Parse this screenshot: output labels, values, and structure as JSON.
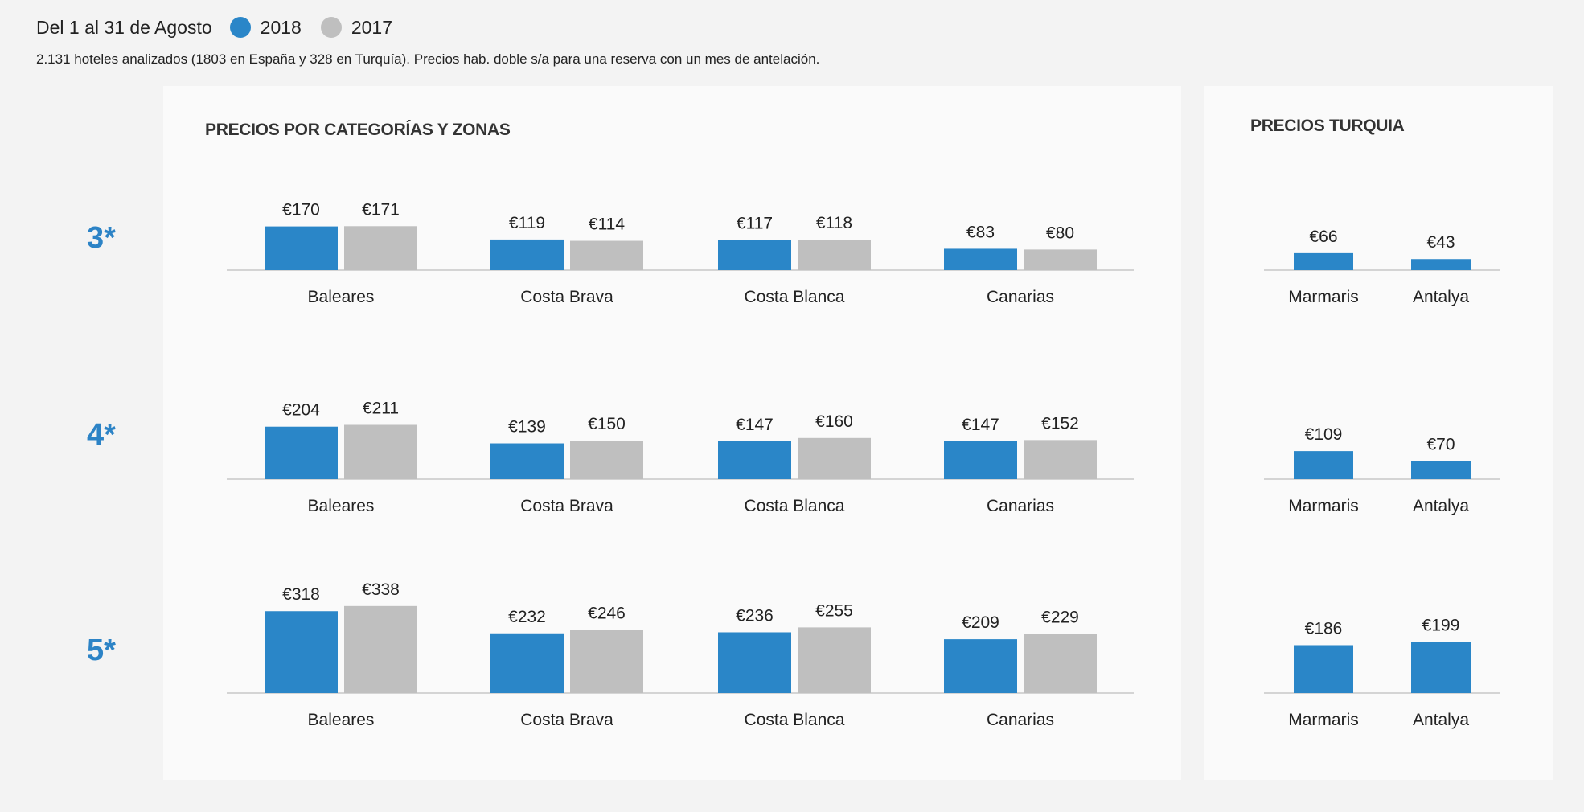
{
  "header": {
    "period": "Del 1 al 31 de Agosto",
    "legend": [
      {
        "label": "2018",
        "color": "#2a86c8"
      },
      {
        "label": "2017",
        "color": "#bfbfbf"
      }
    ],
    "subtitle": "2.131 hoteles analizados (1803 en España y 328 en Turquía). Precios hab. doble s/a para una reserva con un mes de antelación."
  },
  "panels": {
    "spain_title": "PRECIOS POR CATEGORÍAS Y ZONAS",
    "turkey_title": "PRECIOS TURQUIA"
  },
  "categories": [
    "3*",
    "4*",
    "5*"
  ],
  "chart_data": [
    {
      "type": "bar",
      "title": "PRECIOS POR CATEGORÍAS Y ZONAS",
      "categories": [
        "Baleares",
        "Costa Brava",
        "Costa Blanca",
        "Canarias"
      ],
      "groups": [
        {
          "category": "3*",
          "series": [
            {
              "name": "2018",
              "values": [
                170,
                119,
                117,
                83
              ]
            },
            {
              "name": "2017",
              "values": [
                171,
                114,
                118,
                80
              ]
            }
          ]
        },
        {
          "category": "4*",
          "series": [
            {
              "name": "2018",
              "values": [
                204,
                139,
                147,
                147
              ]
            },
            {
              "name": "2017",
              "values": [
                211,
                150,
                160,
                152
              ]
            }
          ]
        },
        {
          "category": "5*",
          "series": [
            {
              "name": "2018",
              "values": [
                318,
                232,
                236,
                209
              ]
            },
            {
              "name": "2017",
              "values": [
                338,
                246,
                255,
                229
              ]
            }
          ]
        }
      ],
      "value_prefix": "€"
    },
    {
      "type": "bar",
      "title": "PRECIOS TURQUIA",
      "categories": [
        "Marmaris",
        "Antalya"
      ],
      "groups": [
        {
          "category": "3*",
          "series": [
            {
              "name": "2018",
              "values": [
                66,
                43
              ]
            }
          ]
        },
        {
          "category": "4*",
          "series": [
            {
              "name": "2018",
              "values": [
                109,
                70
              ]
            }
          ]
        },
        {
          "category": "5*",
          "series": [
            {
              "name": "2018",
              "values": [
                186,
                199
              ]
            }
          ]
        }
      ],
      "value_prefix": "€"
    }
  ]
}
